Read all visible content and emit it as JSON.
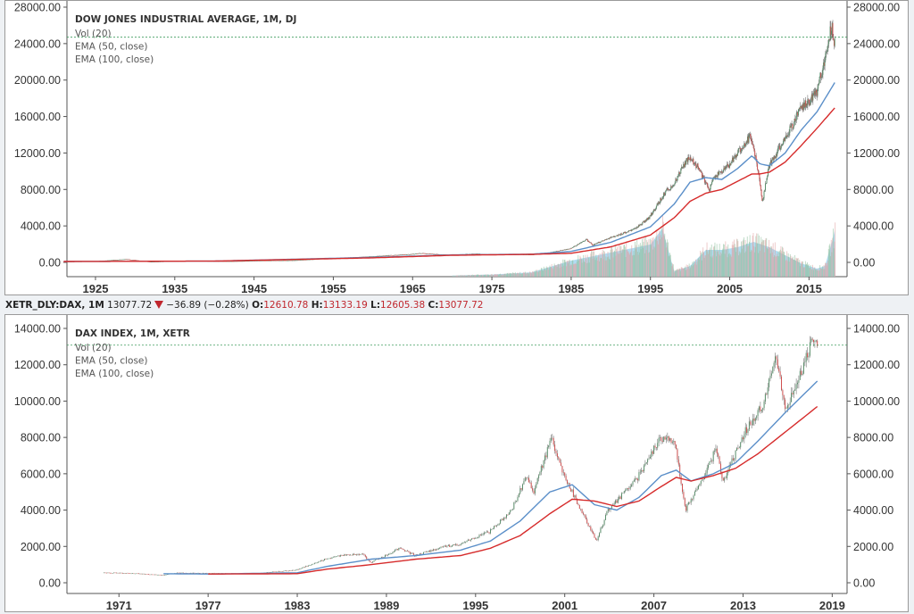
{
  "chart_data": [
    {
      "type": "line",
      "title": "DOW JONES INDUSTRIAL AVERAGE, 1M, DJ",
      "legend": [
        "Vol (20)",
        "EMA (50, close)",
        "EMA (100, close)"
      ],
      "legend_placement": "top-left",
      "y_ticks": [
        "0.00",
        "4000.00",
        "8000.00",
        "12000.00",
        "16000.00",
        "20000.00",
        "24000.00",
        "28000.00"
      ],
      "x_ticks": [
        "1925",
        "1935",
        "1945",
        "1955",
        "1965",
        "1975",
        "1985",
        "1995",
        "2005",
        "2015"
      ],
      "ylim": [
        0,
        28000
      ],
      "xlim": [
        1921.4,
        2019.8
      ],
      "last_price_line": 24700,
      "series": [
        {
          "name": "price (close)",
          "color": "#5a8f6b",
          "x": [
            1921,
            1925,
            1929,
            1932,
            1937,
            1942,
            1946,
            1950,
            1955,
            1960,
            1965,
            1966,
            1970,
            1973,
            1975,
            1980,
            1982,
            1985,
            1987,
            1987.8,
            1990,
            1993,
            1995,
            1997,
            1998,
            1999.5,
            2000,
            2001,
            2002.5,
            2003,
            2005,
            2007.7,
            2008.5,
            2009.2,
            2010,
            2011,
            2013,
            2014,
            2015,
            2016,
            2017,
            2018.0,
            2018.1,
            2018.3
          ],
          "y": [
            80,
            120,
            350,
            60,
            180,
            110,
            190,
            220,
            450,
            650,
            900,
            1000,
            800,
            950,
            850,
            850,
            1000,
            1500,
            2500,
            1900,
            2700,
            3600,
            5000,
            7800,
            8500,
            11000,
            11500,
            10500,
            8000,
            9200,
            10700,
            13900,
            11000,
            6600,
            10500,
            12000,
            15000,
            17000,
            17500,
            18500,
            22000,
            26500,
            24500,
            24300
          ]
        },
        {
          "name": "EMA (50, close)",
          "color": "#5b8fc9",
          "x": [
            1921,
            1940,
            1960,
            1970,
            1980,
            1985,
            1990,
            1995,
            1998,
            2000,
            2002,
            2004,
            2006,
            2007.8,
            2008.8,
            2010,
            2012,
            2014,
            2016,
            2018.3
          ],
          "y": [
            100,
            140,
            550,
            820,
            900,
            1200,
            2200,
            3900,
            6400,
            8800,
            9300,
            9100,
            10300,
            11700,
            10800,
            10600,
            12000,
            14500,
            16500,
            19800
          ]
        },
        {
          "name": "EMA (100, close)",
          "color": "#d62b2b",
          "x": [
            1921,
            1940,
            1960,
            1970,
            1980,
            1985,
            1990,
            1995,
            1998,
            2000,
            2002,
            2004,
            2006,
            2007.8,
            2008.8,
            2010,
            2012,
            2014,
            2016,
            2018.3
          ],
          "y": [
            100,
            140,
            500,
            780,
            880,
            1000,
            1700,
            3000,
            4900,
            6700,
            7600,
            8000,
            8900,
            9700,
            9700,
            9900,
            11000,
            12800,
            14700,
            17000
          ]
        },
        {
          "name": "Vol (20)",
          "color": "#62b2d8",
          "x": [
            1970,
            1975,
            1980,
            1985,
            1990,
            1995,
            1996.5,
            1998,
            2000,
            2002,
            2004,
            2006,
            2008,
            2010,
            2012,
            2014,
            2016,
            2017,
            2018,
            2018.3
          ],
          "y": [
            0.02,
            0.04,
            0.08,
            0.3,
            0.45,
            0.6,
            0.9,
            0.1,
            0.2,
            0.5,
            0.5,
            0.55,
            0.65,
            0.55,
            0.4,
            0.25,
            0.15,
            0.2,
            0.7,
            0.9
          ]
        }
      ]
    },
    {
      "type": "line",
      "title": "DAX INDEX, 1M, XETR",
      "legend": [
        "Vol (20)",
        "EMA (50, close)",
        "EMA (100, close)"
      ],
      "legend_placement": "top-left",
      "y_ticks": [
        "0.00",
        "2000.00",
        "4000.00",
        "6000.00",
        "8000.00",
        "10000.00",
        "12000.00",
        "14000.00"
      ],
      "x_ticks": [
        "1971",
        "1977",
        "1983",
        "1989",
        "1995",
        "2001",
        "2007",
        "2013",
        "2019"
      ],
      "ylim": [
        0,
        14000
      ],
      "xlim": [
        1967.5,
        2020
      ],
      "last_price_line": 13077.72,
      "series": [
        {
          "name": "price (close)",
          "color": "#5a8f6b",
          "x": [
            1970,
            1972,
            1974,
            1975,
            1977,
            1980,
            1983,
            1985,
            1986,
            1987.5,
            1988,
            1990,
            1991,
            1993,
            1994,
            1996,
            1997.5,
            1998.5,
            1999,
            2000.2,
            2001,
            2002,
            2003.2,
            2004,
            2006,
            2007.5,
            2008.5,
            2009.2,
            2010.5,
            2011.3,
            2011.7,
            2013,
            2014.5,
            2015.3,
            2016,
            2017,
            2017.8,
            2018.0
          ],
          "y": [
            560,
            520,
            420,
            550,
            520,
            500,
            700,
            1300,
            1500,
            1600,
            1100,
            1900,
            1500,
            2000,
            2100,
            2800,
            4000,
            5800,
            5000,
            8000,
            6000,
            4300,
            2300,
            4000,
            5800,
            8000,
            7800,
            4000,
            6000,
            7400,
            5500,
            8000,
            10000,
            12300,
            9500,
            11500,
            13500,
            13078
          ]
        },
        {
          "name": "EMA (50, close)",
          "color": "#5b8fc9",
          "x": [
            1974,
            1977,
            1983,
            1985,
            1988,
            1991,
            1994,
            1996,
            1998,
            2000,
            2001.5,
            2003,
            2004.5,
            2006,
            2007.5,
            2008.5,
            2009.5,
            2011,
            2012.5,
            2014,
            2016,
            2018.0
          ],
          "y": [
            500,
            480,
            550,
            900,
            1300,
            1500,
            1800,
            2300,
            3400,
            5000,
            5400,
            4300,
            4000,
            4700,
            5900,
            6200,
            5600,
            6000,
            6600,
            7800,
            9500,
            11100
          ]
        },
        {
          "name": "EMA (100, close)",
          "color": "#d62b2b",
          "x": [
            1977,
            1983,
            1985,
            1988,
            1991,
            1994,
            1996,
            1998,
            2000,
            2001.5,
            2003,
            2004.5,
            2006,
            2007.5,
            2008.5,
            2009.5,
            2011,
            2012.5,
            2014,
            2016,
            2018.0
          ],
          "y": [
            480,
            500,
            750,
            1000,
            1300,
            1500,
            1900,
            2600,
            3800,
            4600,
            4500,
            4200,
            4500,
            5300,
            5800,
            5600,
            5900,
            6300,
            7100,
            8400,
            9700
          ]
        }
      ]
    }
  ],
  "info_bar": {
    "symbol": "XETR_DLY:DAX, 1M",
    "last": "13077.72",
    "direction_icon": "down-triangle",
    "change": "−36.89 (−0.28%)",
    "open_label": "O:",
    "open": "12610.78",
    "high_label": "H:",
    "high": "13133.19",
    "low_label": "L:",
    "low": "12605.38",
    "close_label": "C:",
    "close": "13077.72"
  },
  "colors": {
    "up": "#5a8f6b",
    "down": "#d05050",
    "ema50": "#5b8fc9",
    "ema100": "#d62b2b",
    "volume": "#62b2d8",
    "last_line": "#3a9a5a",
    "change_red": "#c0262d"
  }
}
